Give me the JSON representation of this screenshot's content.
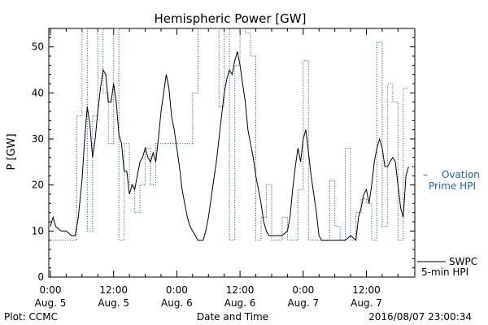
{
  "chart_data": {
    "type": "line",
    "title": "Hemispheric Power [GW]",
    "ylabel": "P [GW]",
    "xlabel": "Date and Time",
    "ylim": [
      0,
      54
    ],
    "xlim_hours": [
      0,
      67
    ],
    "grid": false,
    "yticks": [
      0,
      10,
      20,
      30,
      40,
      50
    ],
    "xticks": [
      {
        "t": 0,
        "time": "0:00",
        "date": "Aug. 5"
      },
      {
        "t": 12,
        "time": "12:00",
        "date": "Aug. 5"
      },
      {
        "t": 24,
        "time": "0:00",
        "date": "Aug. 6"
      },
      {
        "t": 36,
        "time": "12:00",
        "date": "Aug. 6"
      },
      {
        "t": 48,
        "time": "0:00",
        "date": "Aug. 7"
      },
      {
        "t": 60,
        "time": "12:00",
        "date": "Aug. 7"
      }
    ],
    "series": [
      {
        "name": "Ovation Prime HPI",
        "color": "#1f5fbf",
        "style": "dotted-steps",
        "points": [
          [
            0,
            8
          ],
          [
            1,
            8
          ],
          [
            2,
            8
          ],
          [
            3,
            8
          ],
          [
            4,
            8
          ],
          [
            5,
            35
          ],
          [
            6,
            54
          ],
          [
            7,
            10
          ],
          [
            8,
            35
          ],
          [
            9,
            54
          ],
          [
            10,
            40
          ],
          [
            11,
            29
          ],
          [
            12,
            54
          ],
          [
            13,
            8
          ],
          [
            14,
            29
          ],
          [
            15,
            20
          ],
          [
            16,
            14
          ],
          [
            17,
            20
          ],
          [
            18,
            28
          ],
          [
            19,
            20
          ],
          [
            20,
            29
          ],
          [
            21,
            29
          ],
          [
            22,
            29
          ],
          [
            23,
            29
          ],
          [
            24,
            29
          ],
          [
            25,
            29
          ],
          [
            26,
            29
          ],
          [
            27,
            40
          ],
          [
            28,
            54
          ],
          [
            29,
            54
          ],
          [
            30,
            54
          ],
          [
            31,
            54
          ],
          [
            32,
            37
          ],
          [
            33,
            54
          ],
          [
            34,
            8
          ],
          [
            35,
            46
          ],
          [
            36,
            54
          ],
          [
            37,
            53
          ],
          [
            38,
            48
          ],
          [
            39,
            8
          ],
          [
            40,
            13
          ],
          [
            41,
            20
          ],
          [
            42,
            8
          ],
          [
            43,
            8
          ],
          [
            44,
            13
          ],
          [
            45,
            8
          ],
          [
            46,
            8
          ],
          [
            47,
            19
          ],
          [
            48,
            47
          ],
          [
            49,
            8
          ],
          [
            50,
            8
          ],
          [
            51,
            8
          ],
          [
            52,
            8
          ],
          [
            53,
            21
          ],
          [
            54,
            11
          ],
          [
            55,
            8
          ],
          [
            56,
            28
          ],
          [
            57,
            8
          ],
          [
            58,
            14
          ],
          [
            59,
            17
          ],
          [
            60,
            16
          ],
          [
            61,
            8
          ],
          [
            62,
            51
          ],
          [
            63,
            11
          ],
          [
            64,
            42
          ],
          [
            65,
            38
          ],
          [
            66,
            8
          ],
          [
            67,
            41
          ]
        ]
      },
      {
        "name": "SWPC 5-min HPI",
        "color": "#000000",
        "style": "solid",
        "points": [
          [
            0,
            11
          ],
          [
            0.5,
            13
          ],
          [
            1,
            11
          ],
          [
            2,
            10
          ],
          [
            3,
            10
          ],
          [
            4,
            9
          ],
          [
            4.7,
            9
          ],
          [
            5.3,
            13
          ],
          [
            6,
            21
          ],
          [
            6.5,
            30
          ],
          [
            7,
            37
          ],
          [
            7.5,
            33
          ],
          [
            8,
            26
          ],
          [
            8.5,
            30
          ],
          [
            9,
            36
          ],
          [
            9.5,
            41
          ],
          [
            10,
            45
          ],
          [
            10.5,
            44
          ],
          [
            11,
            38
          ],
          [
            11.5,
            38
          ],
          [
            12,
            42
          ],
          [
            12.5,
            38
          ],
          [
            13,
            31
          ],
          [
            13.5,
            29
          ],
          [
            14,
            23
          ],
          [
            14.5,
            23
          ],
          [
            15,
            18
          ],
          [
            15.5,
            20
          ],
          [
            16,
            19
          ],
          [
            16.5,
            22
          ],
          [
            17,
            25
          ],
          [
            17.5,
            26
          ],
          [
            18,
            28
          ],
          [
            18.5,
            26
          ],
          [
            19,
            25
          ],
          [
            19.5,
            27
          ],
          [
            20,
            25
          ],
          [
            20.5,
            30
          ],
          [
            21,
            36
          ],
          [
            21.5,
            40
          ],
          [
            22,
            44
          ],
          [
            22.5,
            41
          ],
          [
            23,
            35
          ],
          [
            23.5,
            32
          ],
          [
            24,
            28
          ],
          [
            24.5,
            24
          ],
          [
            25,
            19
          ],
          [
            25.5,
            16
          ],
          [
            26,
            13
          ],
          [
            26.5,
            11
          ],
          [
            27,
            10
          ],
          [
            27.5,
            9
          ],
          [
            28,
            8
          ],
          [
            28.5,
            8
          ],
          [
            29,
            8
          ],
          [
            29.5,
            10
          ],
          [
            30,
            13
          ],
          [
            30.5,
            17
          ],
          [
            31,
            21
          ],
          [
            31.5,
            25
          ],
          [
            32,
            30
          ],
          [
            32.5,
            35
          ],
          [
            33,
            40
          ],
          [
            33.5,
            43
          ],
          [
            34,
            45
          ],
          [
            34.5,
            44
          ],
          [
            35,
            47
          ],
          [
            35.5,
            49
          ],
          [
            36,
            46
          ],
          [
            36.5,
            42
          ],
          [
            37,
            38
          ],
          [
            37.5,
            32
          ],
          [
            38,
            29
          ],
          [
            38.5,
            26
          ],
          [
            39,
            22
          ],
          [
            39.5,
            19
          ],
          [
            40,
            16
          ],
          [
            40.5,
            12
          ],
          [
            41,
            10
          ],
          [
            41.5,
            9
          ],
          [
            42,
            9
          ],
          [
            43,
            9
          ],
          [
            44,
            9
          ],
          [
            45,
            10
          ],
          [
            45.5,
            13
          ],
          [
            46,
            19
          ],
          [
            46.5,
            24
          ],
          [
            47,
            28
          ],
          [
            47.5,
            25
          ],
          [
            48,
            30
          ],
          [
            48.5,
            32
          ],
          [
            49,
            27
          ],
          [
            49.5,
            22
          ],
          [
            50,
            18
          ],
          [
            50.5,
            14
          ],
          [
            51,
            9
          ],
          [
            51.5,
            8
          ],
          [
            52,
            8
          ],
          [
            53,
            8
          ],
          [
            54,
            8
          ],
          [
            55,
            8
          ],
          [
            56,
            8
          ],
          [
            57,
            9
          ],
          [
            58,
            8
          ],
          [
            58.5,
            13
          ],
          [
            59,
            15
          ],
          [
            59.5,
            18
          ],
          [
            60,
            19
          ],
          [
            60.5,
            16
          ],
          [
            61,
            20
          ],
          [
            61.5,
            25
          ],
          [
            62,
            28
          ],
          [
            62.5,
            30
          ],
          [
            63,
            28
          ],
          [
            63.5,
            24
          ],
          [
            64,
            24
          ],
          [
            64.5,
            25
          ],
          [
            65,
            26
          ],
          [
            65.5,
            25
          ],
          [
            66,
            20
          ],
          [
            66.5,
            15
          ],
          [
            67,
            13
          ],
          [
            67.5,
            22
          ],
          [
            68,
            24
          ]
        ]
      }
    ]
  },
  "legend": {
    "ovation_line1": "Ovation",
    "ovation_line2": "Prime HPI",
    "swpc_line1": "SWPC",
    "swpc_line2": "5-min HPI"
  },
  "footer": {
    "left": "Plot: CCMC",
    "right": "2016/08/07 23:00:34"
  }
}
